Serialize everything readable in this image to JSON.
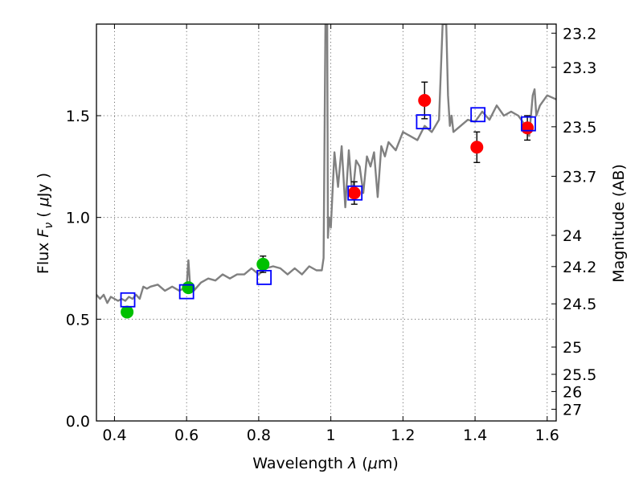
{
  "chart_data": {
    "type": "scatter",
    "xlabel": {
      "prefix": "Wavelength",
      "symbol": "λ",
      "unit_open": " (",
      "unit_mu": "μ",
      "unit_rest": "m)"
    },
    "ylabel": {
      "prefix": "Flux",
      "symbol": "F",
      "sub": "ν",
      "unit_open": "( ",
      "unit_mu": "μ",
      "unit_rest": "Jy )"
    },
    "y2label": "Magnitude (AB)",
    "xlim": [
      0.35,
      1.625
    ],
    "ylim": [
      0.0,
      1.95
    ],
    "grid": true,
    "x_ticks": [
      0.4,
      0.6,
      0.8,
      1.0,
      1.2,
      1.4,
      1.6
    ],
    "x_tick_labels": [
      "0.4",
      "0.6",
      "0.8",
      "1",
      "1.2",
      "1.4",
      "1.6"
    ],
    "y_ticks": [
      0.0,
      0.5,
      1.0,
      1.5
    ],
    "y_tick_labels": [
      "0.0",
      "0.5",
      "1.0",
      "1.5"
    ],
    "mag_ticks": [
      {
        "mag": 23.2,
        "label": "23.2"
      },
      {
        "mag": 23.3,
        "label": "23.3"
      },
      {
        "mag": 23.5,
        "label": "23.5"
      },
      {
        "mag": 23.7,
        "label": "23.7"
      },
      {
        "mag": 24.0,
        "label": "24"
      },
      {
        "mag": 24.2,
        "label": "24.2"
      },
      {
        "mag": 24.5,
        "label": "24.5"
      },
      {
        "mag": 25.0,
        "label": "25"
      },
      {
        "mag": 25.5,
        "label": "25.5"
      },
      {
        "mag": 26.0,
        "label": "26"
      },
      {
        "mag": 27.0,
        "label": "27"
      }
    ],
    "series": [
      {
        "kind": "line",
        "color": "#808080",
        "x": [
          0.35,
          0.36,
          0.37,
          0.38,
          0.39,
          0.4,
          0.41,
          0.42,
          0.43,
          0.44,
          0.45,
          0.46,
          0.47,
          0.48,
          0.49,
          0.5,
          0.52,
          0.54,
          0.56,
          0.58,
          0.6,
          0.605,
          0.61,
          0.62,
          0.64,
          0.66,
          0.68,
          0.7,
          0.72,
          0.74,
          0.76,
          0.78,
          0.8,
          0.82,
          0.84,
          0.86,
          0.88,
          0.9,
          0.92,
          0.94,
          0.96,
          0.975,
          0.98,
          0.985,
          0.988,
          0.99,
          0.992,
          0.995,
          1.0,
          1.01,
          1.02,
          1.03,
          1.04,
          1.05,
          1.06,
          1.07,
          1.08,
          1.09,
          1.1,
          1.11,
          1.12,
          1.13,
          1.14,
          1.15,
          1.16,
          1.18,
          1.2,
          1.22,
          1.24,
          1.26,
          1.28,
          1.3,
          1.31,
          1.315,
          1.32,
          1.325,
          1.33,
          1.335,
          1.34,
          1.36,
          1.38,
          1.4,
          1.42,
          1.44,
          1.46,
          1.48,
          1.5,
          1.52,
          1.54,
          1.55,
          1.56,
          1.565,
          1.57,
          1.58,
          1.6,
          1.625
        ],
        "y": [
          0.62,
          0.6,
          0.62,
          0.58,
          0.61,
          0.6,
          0.59,
          0.6,
          0.59,
          0.61,
          0.6,
          0.62,
          0.6,
          0.66,
          0.65,
          0.66,
          0.67,
          0.64,
          0.66,
          0.64,
          0.66,
          0.79,
          0.66,
          0.64,
          0.68,
          0.7,
          0.69,
          0.72,
          0.7,
          0.72,
          0.72,
          0.75,
          0.72,
          0.75,
          0.76,
          0.75,
          0.72,
          0.75,
          0.72,
          0.76,
          0.74,
          0.74,
          0.8,
          1.95,
          1.95,
          1.95,
          0.9,
          1.0,
          0.95,
          1.32,
          1.15,
          1.35,
          1.05,
          1.33,
          1.1,
          1.28,
          1.25,
          1.12,
          1.3,
          1.25,
          1.32,
          1.1,
          1.35,
          1.3,
          1.37,
          1.33,
          1.42,
          1.4,
          1.38,
          1.45,
          1.42,
          1.48,
          1.95,
          1.95,
          1.95,
          1.6,
          1.45,
          1.5,
          1.42,
          1.45,
          1.48,
          1.47,
          1.52,
          1.48,
          1.55,
          1.5,
          1.52,
          1.5,
          1.45,
          1.4,
          1.6,
          1.63,
          1.5,
          1.55,
          1.6,
          1.58
        ]
      },
      {
        "kind": "points",
        "marker": "circle",
        "color": "#00c000",
        "x": [
          0.435,
          0.605,
          0.812
        ],
        "y": [
          0.535,
          0.655,
          0.77
        ],
        "err": [
          0.02,
          0.02,
          0.04
        ]
      },
      {
        "kind": "points",
        "marker": "circle",
        "color": "#ff0000",
        "x": [
          1.065,
          1.26,
          1.405,
          1.545
        ],
        "y": [
          1.12,
          1.575,
          1.345,
          1.44
        ],
        "err": [
          0.055,
          0.09,
          0.075,
          0.06
        ]
      },
      {
        "kind": "points",
        "marker": "open-square",
        "color": "#0000ff",
        "x": [
          0.437,
          0.6,
          0.815,
          1.067,
          1.257,
          1.408,
          1.548
        ],
        "y": [
          0.595,
          0.635,
          0.705,
          1.12,
          1.47,
          1.505,
          1.46
        ]
      }
    ]
  }
}
